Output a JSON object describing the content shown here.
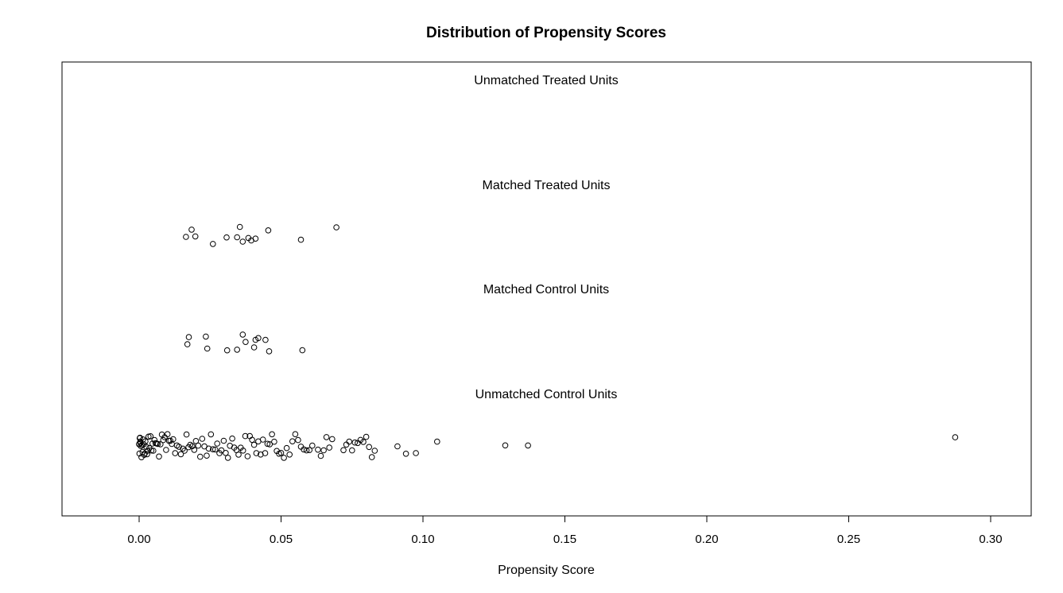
{
  "chart_data": {
    "type": "scatter",
    "title": "Distribution of Propensity Scores",
    "xlabel": "Propensity Score",
    "ylabel": "",
    "xlim": [
      -0.0275,
      0.315
    ],
    "xticks": [
      "0.00",
      "0.05",
      "0.10",
      "0.15",
      "0.20",
      "0.25",
      "0.30"
    ],
    "grid": false,
    "point_style": "open-circle",
    "groups": [
      {
        "label": "Unmatched Treated Units",
        "points": []
      },
      {
        "label": "Matched Treated Units",
        "points": [
          0.0165,
          0.0185,
          0.0198,
          0.026,
          0.0308,
          0.0345,
          0.0355,
          0.0365,
          0.0385,
          0.0395,
          0.041,
          0.0455,
          0.057,
          0.0695
        ]
      },
      {
        "label": "Matched Control Units",
        "points": [
          0.017,
          0.0175,
          0.0235,
          0.024,
          0.031,
          0.0345,
          0.0365,
          0.0375,
          0.0405,
          0.041,
          0.042,
          0.0445,
          0.0458,
          0.0575
        ]
      },
      {
        "label": "Unmatched Control Units",
        "points": [
          0.0,
          0.0,
          0.0001,
          0.0002,
          0.0003,
          0.0004,
          0.0005,
          0.0006,
          0.0008,
          0.001,
          0.0012,
          0.0014,
          0.0016,
          0.0018,
          0.002,
          0.0022,
          0.0025,
          0.0028,
          0.003,
          0.0033,
          0.0036,
          0.004,
          0.0043,
          0.0047,
          0.005,
          0.0054,
          0.0058,
          0.0062,
          0.0066,
          0.007,
          0.0075,
          0.008,
          0.0085,
          0.009,
          0.0095,
          0.01,
          0.0105,
          0.011,
          0.0115,
          0.012,
          0.0127,
          0.0133,
          0.014,
          0.0147,
          0.0154,
          0.016,
          0.0167,
          0.0174,
          0.018,
          0.0187,
          0.0194,
          0.02,
          0.0208,
          0.0215,
          0.0222,
          0.023,
          0.0238,
          0.0245,
          0.0253,
          0.026,
          0.0268,
          0.0275,
          0.0283,
          0.029,
          0.0298,
          0.0305,
          0.0313,
          0.032,
          0.0328,
          0.0335,
          0.0343,
          0.035,
          0.0358,
          0.0366,
          0.0374,
          0.0382,
          0.039,
          0.0398,
          0.0405,
          0.0413,
          0.042,
          0.0428,
          0.0436,
          0.0444,
          0.0452,
          0.046,
          0.0468,
          0.0476,
          0.0485,
          0.0493,
          0.05,
          0.051,
          0.052,
          0.053,
          0.054,
          0.055,
          0.056,
          0.057,
          0.058,
          0.059,
          0.06,
          0.061,
          0.063,
          0.064,
          0.065,
          0.066,
          0.067,
          0.068,
          0.072,
          0.073,
          0.074,
          0.075,
          0.076,
          0.077,
          0.078,
          0.079,
          0.08,
          0.081,
          0.082,
          0.083,
          0.091,
          0.094,
          0.0975,
          0.105,
          0.129,
          0.137,
          0.2875
        ]
      }
    ]
  }
}
